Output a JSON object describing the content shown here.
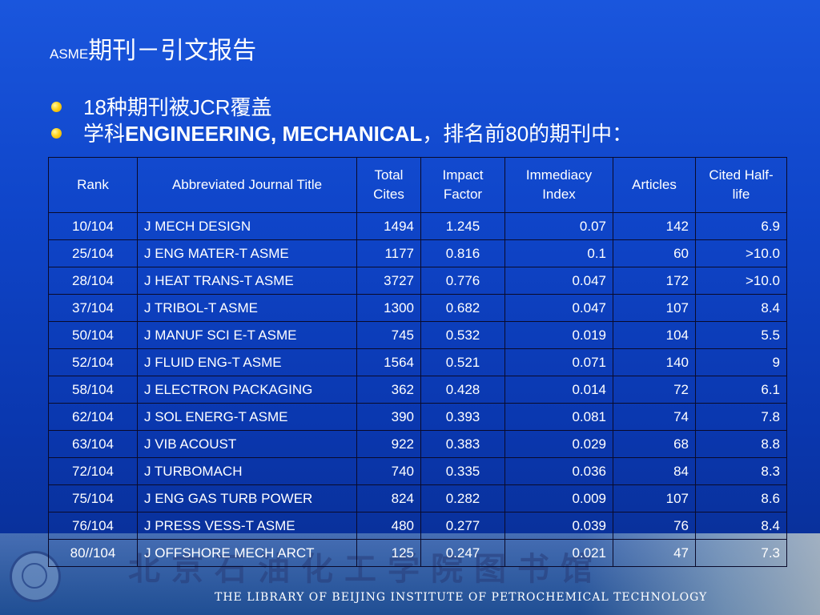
{
  "title": {
    "prefix": "ASME",
    "main": "期刊－引文报告"
  },
  "bullets": [
    {
      "dot_color": "#ffd21a",
      "plain_start": "18种期刊被JCR覆盖",
      "bold": "",
      "plain_end": ""
    },
    {
      "dot_color": "#ffd21a",
      "plain_start": "学科",
      "bold": "ENGINEERING, MECHANICAL",
      "plain_end": "，排名前80的期刊中："
    }
  ],
  "table": {
    "headers": [
      "Rank",
      "Abbreviated Journal Title",
      "Total Cites",
      "Impact Factor",
      "Immediacy Index",
      "Articles",
      "Cited Half-life"
    ],
    "rows": [
      [
        "10/104",
        "J MECH DESIGN",
        "1494",
        "1.245",
        "0.07",
        "142",
        "6.9"
      ],
      [
        "25/104",
        "J ENG MATER-T ASME",
        "1177",
        "0.816",
        "0.1",
        "60",
        ">10.0"
      ],
      [
        "28/104",
        "J HEAT TRANS-T ASME",
        "3727",
        "0.776",
        "0.047",
        "172",
        ">10.0"
      ],
      [
        "37/104",
        "J TRIBOL-T ASME",
        "1300",
        "0.682",
        "0.047",
        "107",
        "8.4"
      ],
      [
        "50/104",
        "J MANUF SCI E-T ASME",
        "745",
        "0.532",
        "0.019",
        "104",
        "5.5"
      ],
      [
        "52/104",
        "J FLUID ENG-T ASME",
        "1564",
        "0.521",
        "0.071",
        "140",
        "9"
      ],
      [
        "58/104",
        "J ELECTRON PACKAGING",
        "362",
        "0.428",
        "0.014",
        "72",
        "6.1"
      ],
      [
        "62/104",
        "J SOL ENERG-T ASME",
        "390",
        "0.393",
        "0.081",
        "74",
        "7.8"
      ],
      [
        "63/104",
        "J VIB ACOUST",
        "922",
        "0.383",
        "0.029",
        "68",
        "8.8"
      ],
      [
        "72/104",
        "J TURBOMACH",
        "740",
        "0.335",
        "0.036",
        "84",
        "8.3"
      ],
      [
        "75/104",
        "J ENG GAS TURB POWER",
        "824",
        "0.282",
        "0.009",
        "107",
        "8.6"
      ],
      [
        "76/104",
        "J PRESS VESS-T ASME",
        "480",
        "0.277",
        "0.039",
        "76",
        "8.4"
      ],
      [
        "80//104",
        "J OFFSHORE MECH ARCT",
        "125",
        "0.247",
        "0.021",
        "47",
        "7.3"
      ]
    ]
  },
  "footer": {
    "library_name_cn": "北京石油化工学院图书馆",
    "library_name_en": "THE LIBRARY OF BEIJING INSTITUTE OF PETROCHEMICAL TECHNOLOGY"
  }
}
